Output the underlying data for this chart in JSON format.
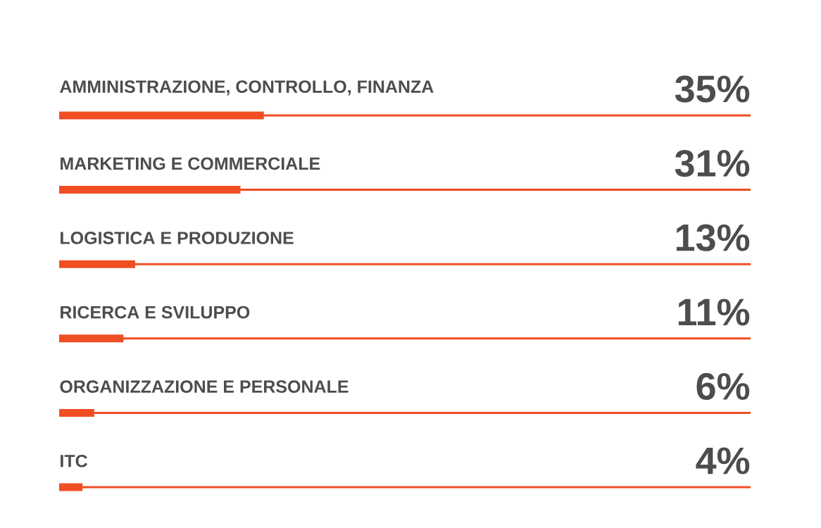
{
  "chart_data": {
    "type": "bar",
    "orientation": "horizontal",
    "categories": [
      "AMMINISTRAZIONE, CONTROLLO, FINANZA",
      "MARKETING E COMMERCIALE",
      "LOGISTICA E PRODUZIONE",
      "RICERCA E SVILUPPO",
      "ORGANIZZAZIONE E PERSONALE",
      "ITC"
    ],
    "values": [
      35,
      31,
      13,
      11,
      6,
      4
    ],
    "value_labels": [
      "35%",
      "31%",
      "13%",
      "11%",
      "6%",
      "4%"
    ],
    "color": "#f04e23",
    "grid": "y"
  }
}
